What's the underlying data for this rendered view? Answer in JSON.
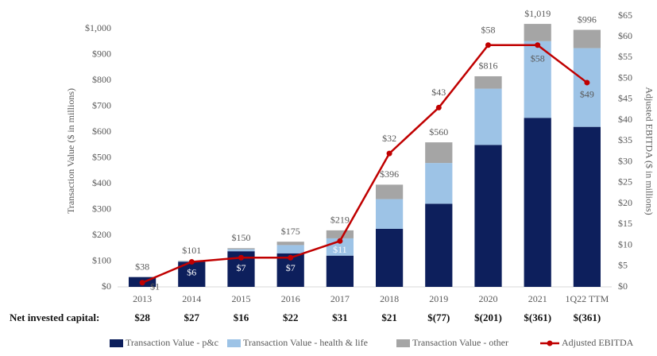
{
  "chart_data": {
    "type": "bar",
    "categories": [
      "2013",
      "2014",
      "2015",
      "2016",
      "2017",
      "2018",
      "2019",
      "2020",
      "2021",
      "1Q22 TTM"
    ],
    "series": [
      {
        "name": "Transaction Value - p&c",
        "color": "#0d1f5c",
        "values": [
          38,
          97,
          138,
          130,
          121,
          225,
          322,
          550,
          655,
          620
        ]
      },
      {
        "name": "Transaction Value - health & life",
        "color": "#9dc3e6",
        "values": [
          0,
          2,
          8,
          32,
          67,
          115,
          158,
          218,
          297,
          305
        ]
      },
      {
        "name": "Transaction Value - other",
        "color": "#a5a5a5",
        "values": [
          0,
          2,
          4,
          13,
          31,
          56,
          80,
          48,
          67,
          71
        ]
      },
      {
        "name": "Adjusted EBITDA",
        "color": "#c00000",
        "axis": "y2",
        "type": "line",
        "values": [
          1,
          6,
          7,
          7,
          11,
          32,
          43,
          58,
          58,
          49
        ],
        "value_labels": [
          "$1",
          "$6",
          "$7",
          "$7",
          "$11",
          "$32",
          "$43",
          "$58",
          "$58",
          "$49"
        ]
      }
    ],
    "totals": [
      38,
      101,
      150,
      175,
      219,
      396,
      560,
      816,
      1019,
      996
    ],
    "total_labels": [
      "$38",
      "$101",
      "$150",
      "$175",
      "$219",
      "$396",
      "$560",
      "$816",
      "$1,019",
      "$996"
    ],
    "net_invested_capital": {
      "label": "Net invested capital:",
      "values": [
        28,
        27,
        16,
        22,
        31,
        21,
        -77,
        -201,
        -361,
        -361
      ],
      "value_labels": [
        "$28",
        "$27",
        "$16",
        "$22",
        "$31",
        "$21",
        "$(77)",
        "$(201)",
        "$(361)",
        "$(361)"
      ]
    },
    "ylabel": "Transaction Value ($ in millions)",
    "y2label": "Adjusted EBITDA ($ in millions)",
    "ylim": [
      0,
      1050
    ],
    "yticks": [
      {
        "value": 0,
        "label": "$0"
      },
      {
        "value": 100,
        "label": "$100"
      },
      {
        "value": 200,
        "label": "$200"
      },
      {
        "value": 300,
        "label": "$300"
      },
      {
        "value": 400,
        "label": "$400"
      },
      {
        "value": 500,
        "label": "$500"
      },
      {
        "value": 600,
        "label": "$600"
      },
      {
        "value": 700,
        "label": "$700"
      },
      {
        "value": 800,
        "label": "$800"
      },
      {
        "value": 900,
        "label": "$900"
      },
      {
        "value": 1000,
        "label": "$1,000"
      }
    ],
    "y2lim": [
      0,
      65
    ],
    "y2ticks": [
      {
        "value": 0,
        "label": "$0"
      },
      {
        "value": 5,
        "label": "$5"
      },
      {
        "value": 10,
        "label": "$10"
      },
      {
        "value": 15,
        "label": "$15"
      },
      {
        "value": 20,
        "label": "$20"
      },
      {
        "value": 25,
        "label": "$25"
      },
      {
        "value": 30,
        "label": "$30"
      },
      {
        "value": 35,
        "label": "$35"
      },
      {
        "value": 40,
        "label": "$40"
      },
      {
        "value": 45,
        "label": "$45"
      },
      {
        "value": 50,
        "label": "$50"
      },
      {
        "value": 55,
        "label": "$55"
      },
      {
        "value": 60,
        "label": "$60"
      },
      {
        "value": 65,
        "label": "$65"
      }
    ],
    "grid": false,
    "legend": "bottom"
  }
}
